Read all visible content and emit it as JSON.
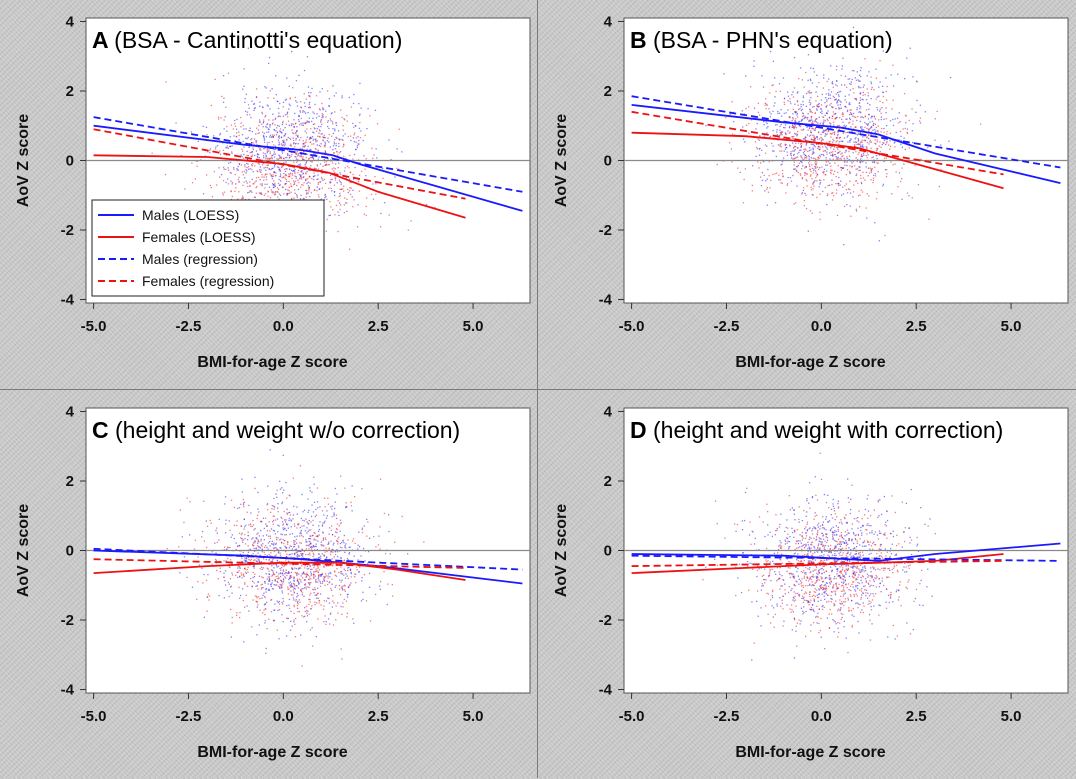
{
  "legend": [
    {
      "label": "Males (LOESS)",
      "color": "#1a1aff",
      "dash": "solid"
    },
    {
      "label": "Females (LOESS)",
      "color": "#ee1111",
      "dash": "solid"
    },
    {
      "label": "Males (regression)",
      "color": "#1a1aff",
      "dash": "dashed"
    },
    {
      "label": "Females (regression)",
      "color": "#ee1111",
      "dash": "dashed"
    }
  ],
  "colors": {
    "males": "#1a1aff",
    "females": "#ee1111",
    "reference_line": "#8a8a8a"
  },
  "chart_data": [
    {
      "type": "scatter",
      "panel": "A",
      "title": "(BSA - Cantinotti's equation)",
      "xlabel": "BMI-for-age Z score",
      "ylabel": "AoV Z score",
      "xlim": [
        -5.2,
        6.5
      ],
      "ylim": [
        -4.1,
        4.1
      ],
      "xticks": [
        "-5.0",
        "-2.5",
        "0.0",
        "2.5",
        "5.0"
      ],
      "yticks": [
        "-4",
        "-2",
        "0",
        "2",
        "4"
      ],
      "scatter_center": {
        "x": 0.2,
        "males_y": 0.3,
        "females_y": -0.1
      },
      "series": [
        {
          "name": "Males (LOESS)",
          "x": [
            -5.0,
            -1.0,
            0.5,
            1.3,
            2.0,
            6.3
          ],
          "y": [
            1.0,
            0.45,
            0.3,
            0.15,
            -0.1,
            -1.45
          ]
        },
        {
          "name": "Females (LOESS)",
          "x": [
            -5.0,
            -2.0,
            0.0,
            1.2,
            2.5,
            4.8
          ],
          "y": [
            0.15,
            0.1,
            -0.1,
            -0.35,
            -0.9,
            -1.65
          ]
        },
        {
          "name": "Males (regression)",
          "x": [
            -5.0,
            6.3
          ],
          "y": [
            1.25,
            -0.9
          ]
        },
        {
          "name": "Females (regression)",
          "x": [
            -5.0,
            4.8
          ],
          "y": [
            0.9,
            -1.1
          ]
        }
      ],
      "reference_line_y": 0
    },
    {
      "type": "scatter",
      "panel": "B",
      "title": "(BSA - PHN's equation)",
      "xlabel": "BMI-for-age Z score",
      "ylabel": "AoV Z score",
      "xlim": [
        -5.2,
        6.5
      ],
      "ylim": [
        -4.1,
        4.1
      ],
      "xticks": [
        "-5.0",
        "-2.5",
        "0.0",
        "2.5",
        "5.0"
      ],
      "yticks": [
        "-4",
        "-2",
        "0",
        "2",
        "4"
      ],
      "scatter_center": {
        "x": 0.2,
        "males_y": 0.9,
        "females_y": 0.5
      },
      "series": [
        {
          "name": "Males (LOESS)",
          "x": [
            -5.0,
            -1.0,
            0.5,
            1.5,
            3.0,
            6.3
          ],
          "y": [
            1.6,
            1.1,
            0.95,
            0.75,
            0.2,
            -0.65
          ]
        },
        {
          "name": "Females (LOESS)",
          "x": [
            -5.0,
            -2.0,
            0.0,
            1.0,
            2.5,
            4.8
          ],
          "y": [
            0.8,
            0.7,
            0.5,
            0.35,
            -0.1,
            -0.8
          ]
        },
        {
          "name": "Males (regression)",
          "x": [
            -5.0,
            6.3
          ],
          "y": [
            1.85,
            -0.2
          ]
        },
        {
          "name": "Females (regression)",
          "x": [
            -5.0,
            4.8
          ],
          "y": [
            1.4,
            -0.4
          ]
        }
      ],
      "reference_line_y": 0
    },
    {
      "type": "scatter",
      "panel": "C",
      "title": "(height and weight w/o correction)",
      "xlabel": "BMI-for-age Z score",
      "ylabel": "AoV Z score",
      "xlim": [
        -5.2,
        6.5
      ],
      "ylim": [
        -4.1,
        4.1
      ],
      "xticks": [
        "-5.0",
        "-2.5",
        "0.0",
        "2.5",
        "5.0"
      ],
      "yticks": [
        "-4",
        "-2",
        "0",
        "2",
        "4"
      ],
      "scatter_center": {
        "x": 0.2,
        "males_y": -0.2,
        "females_y": -0.4
      },
      "series": [
        {
          "name": "Males (LOESS)",
          "x": [
            -5.0,
            -1.0,
            0.5,
            2.5,
            6.3
          ],
          "y": [
            0.0,
            -0.15,
            -0.25,
            -0.45,
            -0.95
          ]
        },
        {
          "name": "Females (LOESS)",
          "x": [
            -5.0,
            -2.0,
            0.0,
            1.5,
            3.0,
            4.8
          ],
          "y": [
            -0.65,
            -0.45,
            -0.35,
            -0.35,
            -0.55,
            -0.85
          ]
        },
        {
          "name": "Males (regression)",
          "x": [
            -5.0,
            6.3
          ],
          "y": [
            0.05,
            -0.55
          ]
        },
        {
          "name": "Females (regression)",
          "x": [
            -5.0,
            4.8
          ],
          "y": [
            -0.25,
            -0.5
          ]
        }
      ],
      "reference_line_y": 0
    },
    {
      "type": "scatter",
      "panel": "D",
      "title": "(height and weight with correction)",
      "xlabel": "BMI-for-age Z score",
      "ylabel": "AoV Z score",
      "xlim": [
        -5.2,
        6.5
      ],
      "ylim": [
        -4.1,
        4.1
      ],
      "xticks": [
        "-5.0",
        "-2.5",
        "0.0",
        "2.5",
        "5.0"
      ],
      "yticks": [
        "-4",
        "-2",
        "0",
        "2",
        "4"
      ],
      "scatter_center": {
        "x": 0.2,
        "males_y": -0.3,
        "females_y": -0.5
      },
      "series": [
        {
          "name": "Males (LOESS)",
          "x": [
            -5.0,
            -1.0,
            1.5,
            3.0,
            6.3
          ],
          "y": [
            -0.1,
            -0.15,
            -0.3,
            -0.1,
            0.2
          ]
        },
        {
          "name": "Females (LOESS)",
          "x": [
            -5.0,
            -2.0,
            0.0,
            1.5,
            3.0,
            4.8
          ],
          "y": [
            -0.65,
            -0.5,
            -0.4,
            -0.35,
            -0.3,
            -0.1
          ]
        },
        {
          "name": "Males (regression)",
          "x": [
            -5.0,
            6.3
          ],
          "y": [
            -0.15,
            -0.3
          ]
        },
        {
          "name": "Females (regression)",
          "x": [
            -5.0,
            4.8
          ],
          "y": [
            -0.45,
            -0.3
          ]
        }
      ],
      "reference_line_y": 0
    }
  ]
}
